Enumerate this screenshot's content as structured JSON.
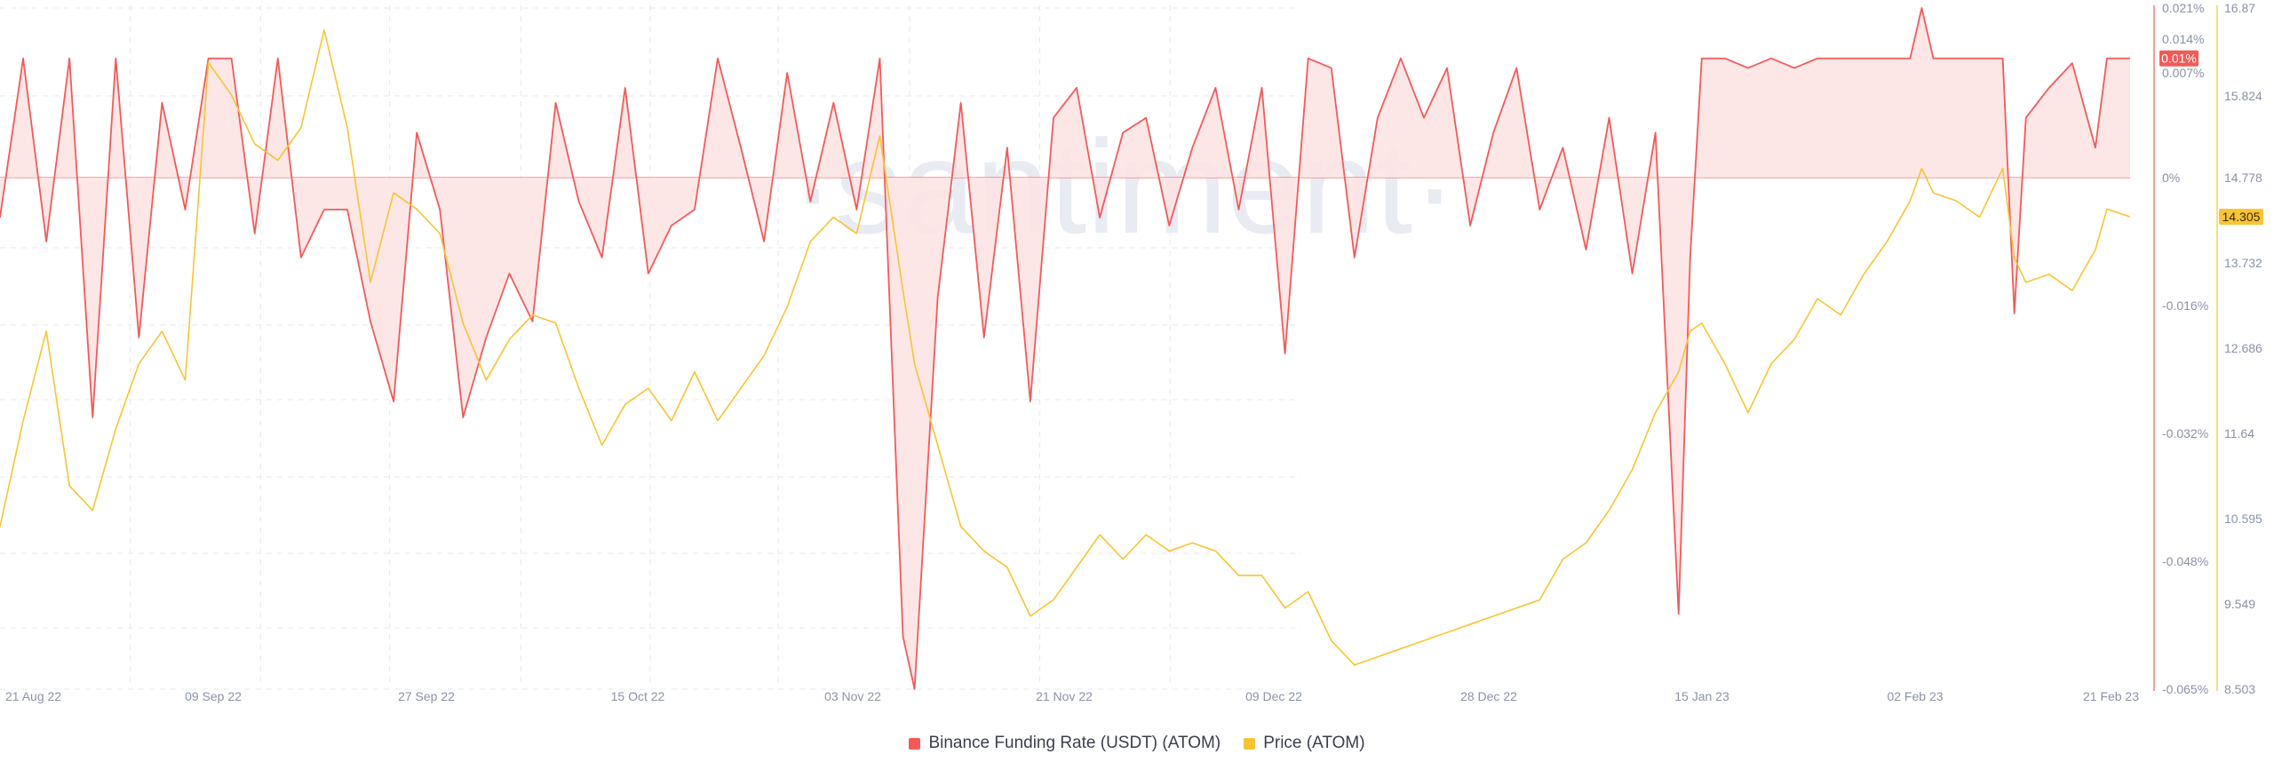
{
  "colors": {
    "funding": "#f25a5a",
    "funding_fill": "#fde3e3",
    "price": "#f7c434",
    "grid": "#e7e9ef",
    "axis_text": "#8a92a6",
    "watermark": "#e9ebf3"
  },
  "watermark": "·santiment·",
  "legend": [
    {
      "label": "Binance Funding Rate (USDT) (ATOM)",
      "color": "#f25a5a"
    },
    {
      "label": "Price (ATOM)",
      "color": "#f7c434"
    }
  ],
  "chart_data": {
    "type": "line",
    "title": "",
    "x_ticks": [
      "21 Aug 22",
      "09 Sep 22",
      "27 Sep 22",
      "15 Oct 22",
      "03 Nov 22",
      "21 Nov 22",
      "09 Dec 22",
      "28 Dec 22",
      "15 Jan 23",
      "02 Feb 23",
      "21 Feb 23"
    ],
    "x_range": [
      "2022-08-21",
      "2023-02-21"
    ],
    "funding_axis": {
      "ticks": [
        "0.021%",
        "0.014%",
        "0.007%",
        "0%",
        "-0.016%",
        "-0.032%",
        "-0.048%",
        "-0.065%"
      ],
      "current_label": "0.01%",
      "baseline_label": "0%"
    },
    "price_axis": {
      "ticks": [
        "16.87",
        "15.824",
        "14.778",
        "13.732",
        "12.686",
        "11.64",
        "10.595",
        "9.549",
        "8.503"
      ],
      "ylim": [
        8.503,
        16.87
      ],
      "current_label": "14.305"
    },
    "series": [
      {
        "name": "Binance Funding Rate (USDT) (ATOM)",
        "unit": "%",
        "x": [
          "2022-08-21",
          "2022-08-23",
          "2022-08-25",
          "2022-08-27",
          "2022-08-29",
          "2022-08-31",
          "2022-09-02",
          "2022-09-04",
          "2022-09-06",
          "2022-09-08",
          "2022-09-10",
          "2022-09-12",
          "2022-09-14",
          "2022-09-16",
          "2022-09-18",
          "2022-09-20",
          "2022-09-22",
          "2022-09-24",
          "2022-09-26",
          "2022-09-28",
          "2022-09-30",
          "2022-10-02",
          "2022-10-04",
          "2022-10-06",
          "2022-10-08",
          "2022-10-10",
          "2022-10-12",
          "2022-10-14",
          "2022-10-16",
          "2022-10-18",
          "2022-10-20",
          "2022-10-22",
          "2022-10-24",
          "2022-10-26",
          "2022-10-28",
          "2022-10-30",
          "2022-11-01",
          "2022-11-03",
          "2022-11-05",
          "2022-11-07",
          "2022-11-08",
          "2022-11-10",
          "2022-11-12",
          "2022-11-14",
          "2022-11-16",
          "2022-11-18",
          "2022-11-20",
          "2022-11-22",
          "2022-11-24",
          "2022-11-26",
          "2022-11-28",
          "2022-11-30",
          "2022-12-02",
          "2022-12-04",
          "2022-12-06",
          "2022-12-08",
          "2022-12-10",
          "2022-12-12",
          "2022-12-14",
          "2022-12-16",
          "2022-12-18",
          "2022-12-20",
          "2022-12-22",
          "2022-12-24",
          "2022-12-26",
          "2022-12-28",
          "2022-12-30",
          "2023-01-01",
          "2023-01-03",
          "2023-01-05",
          "2023-01-07",
          "2023-01-09",
          "2023-01-11",
          "2023-01-13",
          "2023-01-14",
          "2023-01-15",
          "2023-01-17",
          "2023-01-19",
          "2023-01-21",
          "2023-01-23",
          "2023-01-25",
          "2023-01-27",
          "2023-01-29",
          "2023-01-31",
          "2023-02-02",
          "2023-02-03",
          "2023-02-04",
          "2023-02-06",
          "2023-02-08",
          "2023-02-10",
          "2023-02-11",
          "2023-02-12",
          "2023-02-14",
          "2023-02-16",
          "2023-02-18",
          "2023-02-19",
          "2023-02-21"
        ],
        "values": [
          -0.005,
          0.01,
          -0.008,
          0.01,
          -0.03,
          0.01,
          -0.02,
          0.005,
          -0.004,
          0.01,
          0.01,
          -0.007,
          0.01,
          -0.01,
          -0.004,
          -0.004,
          -0.018,
          -0.028,
          0.003,
          -0.004,
          -0.03,
          -0.02,
          -0.012,
          -0.018,
          0.005,
          -0.003,
          -0.01,
          0.006,
          -0.012,
          -0.006,
          -0.004,
          0.01,
          0.002,
          -0.008,
          0.007,
          -0.003,
          0.005,
          -0.004,
          0.01,
          -0.058,
          -0.065,
          -0.015,
          0.005,
          -0.02,
          0.002,
          -0.028,
          0.004,
          0.006,
          -0.005,
          0.003,
          0.004,
          -0.006,
          0.002,
          0.006,
          -0.004,
          0.006,
          -0.022,
          0.01,
          0.008,
          -0.01,
          0.004,
          0.01,
          0.004,
          0.008,
          -0.006,
          0.003,
          0.008,
          -0.004,
          0.002,
          -0.009,
          0.004,
          -0.012,
          0.003,
          -0.055,
          -0.01,
          0.01,
          0.01,
          0.008,
          0.01,
          0.008,
          0.01,
          0.01,
          0.01,
          0.01,
          0.01,
          0.021,
          0.01,
          0.01,
          0.01,
          0.01,
          -0.017,
          0.004,
          0.006,
          0.009,
          0.002,
          0.01,
          0.01
        ]
      },
      {
        "name": "Price (ATOM)",
        "unit": "USD",
        "x": [
          "2022-08-21",
          "2022-08-23",
          "2022-08-25",
          "2022-08-27",
          "2022-08-29",
          "2022-08-31",
          "2022-09-02",
          "2022-09-04",
          "2022-09-06",
          "2022-09-08",
          "2022-09-10",
          "2022-09-12",
          "2022-09-14",
          "2022-09-16",
          "2022-09-18",
          "2022-09-20",
          "2022-09-22",
          "2022-09-24",
          "2022-09-26",
          "2022-09-28",
          "2022-09-30",
          "2022-10-02",
          "2022-10-04",
          "2022-10-06",
          "2022-10-08",
          "2022-10-10",
          "2022-10-12",
          "2022-10-14",
          "2022-10-16",
          "2022-10-18",
          "2022-10-20",
          "2022-10-22",
          "2022-10-24",
          "2022-10-26",
          "2022-10-28",
          "2022-10-30",
          "2022-11-01",
          "2022-11-03",
          "2022-11-05",
          "2022-11-07",
          "2022-11-08",
          "2022-11-10",
          "2022-11-12",
          "2022-11-14",
          "2022-11-16",
          "2022-11-18",
          "2022-11-20",
          "2022-11-22",
          "2022-11-24",
          "2022-11-26",
          "2022-11-28",
          "2022-11-30",
          "2022-12-02",
          "2022-12-04",
          "2022-12-06",
          "2022-12-08",
          "2022-12-10",
          "2022-12-12",
          "2022-12-14",
          "2022-12-16",
          "2022-12-18",
          "2022-12-20",
          "2022-12-22",
          "2022-12-24",
          "2022-12-26",
          "2022-12-28",
          "2022-12-30",
          "2023-01-01",
          "2023-01-03",
          "2023-01-05",
          "2023-01-07",
          "2023-01-09",
          "2023-01-11",
          "2023-01-13",
          "2023-01-14",
          "2023-01-15",
          "2023-01-17",
          "2023-01-19",
          "2023-01-21",
          "2023-01-23",
          "2023-01-25",
          "2023-01-27",
          "2023-01-29",
          "2023-01-31",
          "2023-02-02",
          "2023-02-03",
          "2023-02-04",
          "2023-02-06",
          "2023-02-08",
          "2023-02-10",
          "2023-02-11",
          "2023-02-12",
          "2023-02-14",
          "2023-02-16",
          "2023-02-18",
          "2023-02-19",
          "2023-02-21"
        ],
        "values": [
          10.5,
          11.8,
          12.9,
          11.0,
          10.7,
          11.7,
          12.5,
          12.9,
          12.3,
          16.2,
          15.8,
          15.2,
          15.0,
          15.4,
          16.6,
          15.4,
          13.5,
          14.6,
          14.4,
          14.1,
          13.0,
          12.3,
          12.8,
          13.1,
          13.0,
          12.2,
          11.5,
          12.0,
          12.2,
          11.8,
          12.4,
          11.8,
          12.2,
          12.6,
          13.2,
          14.0,
          14.3,
          14.1,
          15.3,
          13.4,
          12.5,
          11.5,
          10.5,
          10.2,
          10.0,
          9.4,
          9.6,
          10.0,
          10.4,
          10.1,
          10.4,
          10.2,
          10.3,
          10.2,
          9.9,
          9.9,
          9.5,
          9.7,
          9.1,
          8.8,
          8.9,
          9.0,
          9.1,
          9.2,
          9.3,
          9.4,
          9.5,
          9.6,
          10.1,
          10.3,
          10.7,
          11.2,
          11.9,
          12.4,
          12.9,
          13.0,
          12.5,
          11.9,
          12.5,
          12.8,
          13.3,
          13.1,
          13.6,
          14.0,
          14.5,
          14.9,
          14.6,
          14.5,
          14.3,
          14.9,
          13.8,
          13.5,
          13.6,
          13.4,
          13.9,
          14.4,
          14.305
        ]
      }
    ]
  }
}
